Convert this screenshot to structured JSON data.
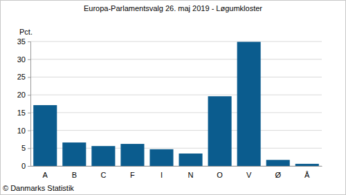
{
  "chart_data": {
    "type": "bar",
    "title": "Europa-Parlamentsvalg 26. maj 2019 - Løgumkloster",
    "ylabel": "Pct.",
    "source": "© Danmarks Statistik",
    "categories": [
      "A",
      "B",
      "C",
      "F",
      "I",
      "N",
      "O",
      "V",
      "Ø",
      "Å"
    ],
    "values": [
      17.1,
      6.6,
      5.6,
      6.2,
      4.7,
      3.5,
      19.6,
      34.9,
      1.7,
      0.6
    ],
    "color": "#0b5c8e",
    "ylim": [
      0,
      35
    ],
    "yticks": [
      0,
      5,
      10,
      15,
      20,
      25,
      30,
      35
    ],
    "grid": true
  }
}
